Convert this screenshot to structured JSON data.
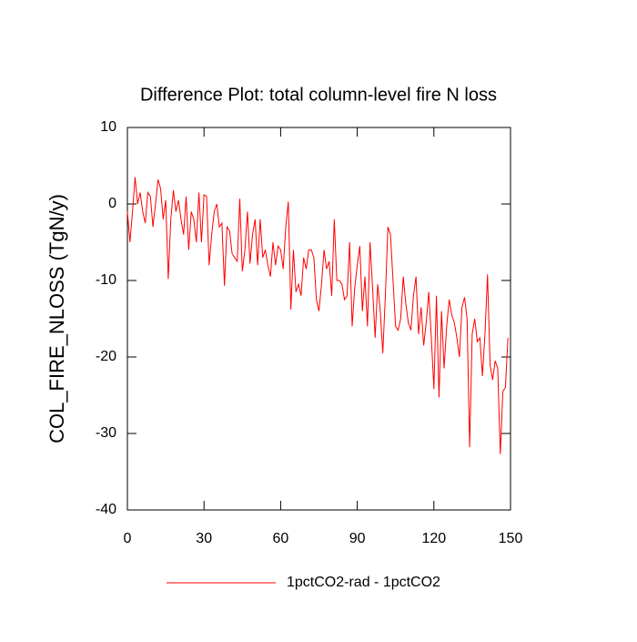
{
  "chart_data": {
    "type": "line",
    "title": "Difference Plot: total column-level fire N loss",
    "y_label": "COL_FIRE_NLOSS  (TgN/y)",
    "x": [
      0,
      1,
      2,
      3,
      4,
      5,
      6,
      7,
      8,
      9,
      10,
      11,
      12,
      13,
      14,
      15,
      16,
      17,
      18,
      19,
      20,
      21,
      22,
      23,
      24,
      25,
      26,
      27,
      28,
      29,
      30,
      31,
      32,
      33,
      34,
      35,
      36,
      37,
      38,
      39,
      40,
      41,
      42,
      43,
      44,
      45,
      46,
      47,
      48,
      49,
      50,
      51,
      52,
      53,
      54,
      55,
      56,
      57,
      58,
      59,
      60,
      61,
      62,
      63,
      64,
      65,
      66,
      67,
      68,
      69,
      70,
      71,
      72,
      73,
      74,
      75,
      76,
      77,
      78,
      79,
      80,
      81,
      82,
      83,
      84,
      85,
      86,
      87,
      88,
      89,
      90,
      91,
      92,
      93,
      94,
      95,
      96,
      97,
      98,
      99,
      100,
      101,
      102,
      103,
      104,
      105,
      106,
      107,
      108,
      109,
      110,
      111,
      112,
      113,
      114,
      115,
      116,
      117,
      118,
      119,
      120,
      121,
      122,
      123,
      124,
      125,
      126,
      127,
      128,
      129,
      130,
      131,
      132,
      133,
      134,
      135,
      136,
      137,
      138,
      139,
      140,
      141,
      142,
      143,
      144,
      145,
      146,
      147,
      148,
      149
    ],
    "series": [
      {
        "name": "1pctCO2-rad - 1pctCO2",
        "color": "#ff0000",
        "values": [
          -1,
          -5,
          -1,
          3.5,
          0,
          1.5,
          -1,
          -2.5,
          1.5,
          1,
          -3,
          0,
          3.2,
          2,
          -2,
          0.5,
          -9.8,
          -2,
          1.8,
          -1,
          0.5,
          -2,
          -4,
          1,
          -6,
          -1,
          -2,
          -5,
          1.5,
          -5,
          1.2,
          1,
          -8,
          -4,
          -1,
          0,
          -3,
          -2.5,
          -10.7,
          -3,
          -3.5,
          -6.5,
          -7,
          -7.5,
          0.7,
          -8.8,
          -6,
          -1,
          -7.8,
          -4,
          -2,
          -8,
          -2,
          -7,
          -6,
          -8,
          -9.5,
          -5,
          -8,
          -5.5,
          -6,
          -8.5,
          -3,
          0.3,
          -13.8,
          -6,
          -11.5,
          -10.5,
          -12,
          -7,
          -8.5,
          -6,
          -6,
          -7,
          -12.5,
          -14,
          -10.5,
          -6,
          -8.5,
          -7.5,
          -12,
          -2,
          -10,
          -10,
          -10.5,
          -12.5,
          -12,
          -5,
          -16,
          -11,
          -8,
          -5.5,
          -14,
          -9.5,
          -16,
          -5,
          -11,
          -17.5,
          -10.5,
          -14,
          -19.5,
          -12,
          -3,
          -4,
          -10,
          -16,
          -16.5,
          -15,
          -9.5,
          -13,
          -15.5,
          -16.5,
          -12,
          -9.5,
          -17,
          -13.5,
          -18.5,
          -15.5,
          -11.5,
          -17.5,
          -24.2,
          -12,
          -25.3,
          -14,
          -21.5,
          -16,
          -12.5,
          -14.5,
          -15.5,
          -17.5,
          -20,
          -13.5,
          -12.2,
          -15,
          -31.8,
          -17,
          -15,
          -18,
          -17.5,
          -22.5,
          -17,
          -9.2,
          -21,
          -23,
          -20.5,
          -21.5,
          -32.7,
          -24.5,
          -24,
          -17.5
        ]
      }
    ],
    "xlim": [
      0,
      150
    ],
    "xticks": [
      0,
      30,
      60,
      90,
      120,
      150
    ],
    "ylim": [
      -40,
      10
    ],
    "yticks": [
      -40,
      -30,
      -20,
      -10,
      0,
      10
    ]
  }
}
